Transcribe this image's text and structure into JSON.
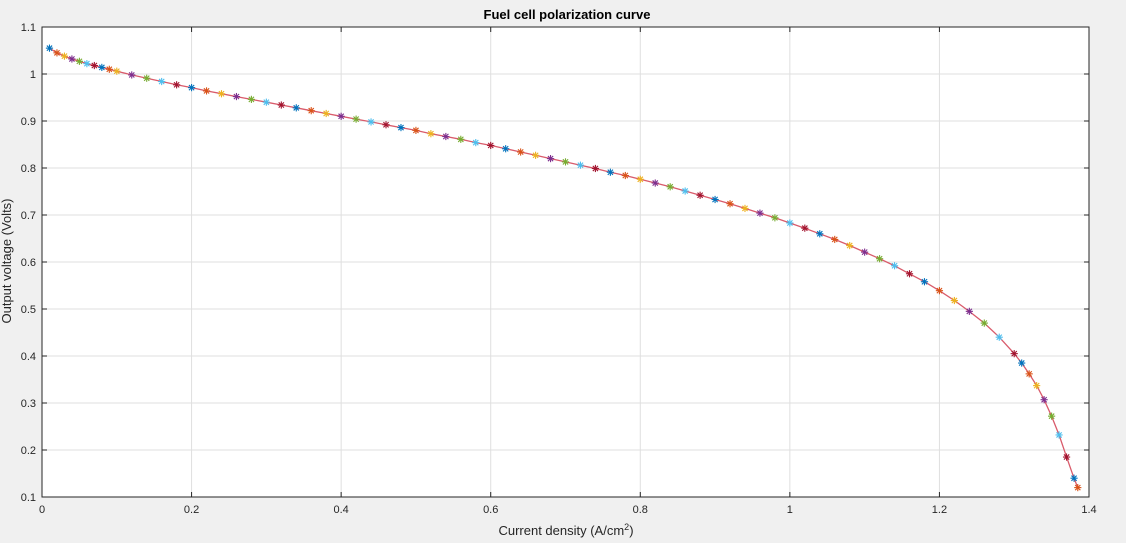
{
  "chart_data": {
    "type": "line",
    "title": "Fuel cell polarization curve",
    "xlabel_main": "Current density (A/cm",
    "xlabel_sup": "2",
    "xlabel_end": ")",
    "ylabel": "Output voltage (Volts)",
    "xlim": [
      0,
      1.4
    ],
    "ylim": [
      0.1,
      1.1
    ],
    "xticks": [
      0,
      0.2,
      0.4,
      0.6,
      0.8,
      1,
      1.2,
      1.4
    ],
    "yticks": [
      0.1,
      0.2,
      0.3,
      0.4,
      0.5,
      0.6,
      0.7,
      0.8,
      0.9,
      1,
      1.1
    ],
    "grid": true,
    "marker": "*",
    "line_color": "#d95b6b",
    "marker_colors": [
      "#0072bd",
      "#d95319",
      "#edb120",
      "#7e2f8e",
      "#77ac30",
      "#4dbeee",
      "#a2142f"
    ],
    "series": [
      {
        "x": [
          0.01,
          0.02,
          0.03,
          0.04,
          0.05,
          0.06,
          0.07,
          0.08,
          0.09,
          0.1,
          0.12,
          0.14,
          0.16,
          0.18,
          0.2,
          0.22,
          0.24,
          0.26,
          0.28,
          0.3,
          0.32,
          0.34,
          0.36,
          0.38,
          0.4,
          0.42,
          0.44,
          0.46,
          0.48,
          0.5,
          0.52,
          0.54,
          0.56,
          0.58,
          0.6,
          0.62,
          0.64,
          0.66,
          0.68,
          0.7,
          0.72,
          0.74,
          0.76,
          0.78,
          0.8,
          0.82,
          0.84,
          0.86,
          0.88,
          0.9,
          0.92,
          0.94,
          0.96,
          0.98,
          1.0,
          1.02,
          1.04,
          1.06,
          1.08,
          1.1,
          1.12,
          1.14,
          1.16,
          1.18,
          1.2,
          1.22,
          1.24,
          1.26,
          1.28,
          1.3,
          1.31,
          1.32,
          1.33,
          1.34,
          1.35,
          1.36,
          1.37,
          1.38,
          1.385
        ],
        "y": [
          1.055,
          1.045,
          1.038,
          1.032,
          1.027,
          1.022,
          1.018,
          1.014,
          1.01,
          1.006,
          0.998,
          0.991,
          0.984,
          0.977,
          0.971,
          0.964,
          0.958,
          0.952,
          0.946,
          0.94,
          0.934,
          0.928,
          0.922,
          0.916,
          0.91,
          0.904,
          0.898,
          0.892,
          0.886,
          0.88,
          0.873,
          0.867,
          0.861,
          0.854,
          0.848,
          0.841,
          0.834,
          0.827,
          0.82,
          0.813,
          0.806,
          0.799,
          0.791,
          0.784,
          0.776,
          0.768,
          0.76,
          0.751,
          0.742,
          0.733,
          0.724,
          0.714,
          0.704,
          0.694,
          0.683,
          0.672,
          0.66,
          0.648,
          0.635,
          0.621,
          0.607,
          0.592,
          0.575,
          0.558,
          0.539,
          0.518,
          0.495,
          0.47,
          0.44,
          0.405,
          0.385,
          0.362,
          0.337,
          0.307,
          0.272,
          0.232,
          0.185,
          0.14,
          0.12
        ]
      }
    ]
  }
}
